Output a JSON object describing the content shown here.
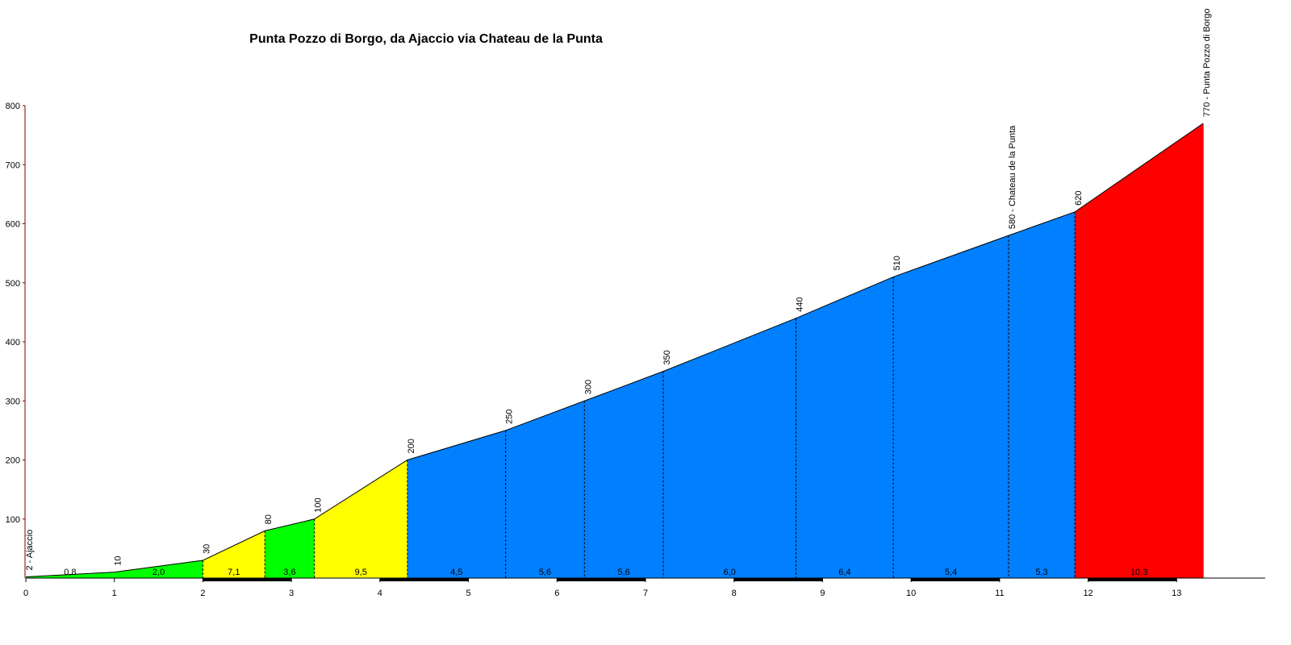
{
  "chart_data": {
    "type": "elevation-profile",
    "title": "Punta Pozzo di Borgo, da Ajaccio via Chateau de la Punta",
    "x": [
      0,
      1.0,
      2.0,
      2.7,
      3.26,
      4.31,
      5.42,
      6.31,
      7.2,
      8.7,
      9.8,
      11.1,
      11.85,
      13.3
    ],
    "values": [
      2,
      10,
      30,
      80,
      100,
      200,
      250,
      300,
      350,
      440,
      510,
      580,
      620,
      770
    ],
    "value_labels": [
      "2 - Ajaccio",
      "10",
      "30",
      "80",
      "100",
      "200",
      "250",
      "300",
      "350",
      "440",
      "510",
      "580 - Chateau de la Punta",
      "620",
      "770 - Punta Pozzo di Borgo"
    ],
    "gradients": [
      {
        "value": 0.8,
        "label": "0,8"
      },
      {
        "value": 2.0,
        "label": "2,0"
      },
      {
        "value": 7.1,
        "label": "7,1"
      },
      {
        "value": 3.6,
        "label": "3,6"
      },
      {
        "value": 9.5,
        "label": "9,5"
      },
      {
        "value": 4.5,
        "label": "4,5"
      },
      {
        "value": 5.6,
        "label": "5,6"
      },
      {
        "value": 5.6,
        "label": "5,6"
      },
      {
        "value": 6.0,
        "label": "6,0"
      },
      {
        "value": 6.4,
        "label": "6,4"
      },
      {
        "value": 5.4,
        "label": "5,4"
      },
      {
        "value": 5.3,
        "label": "5,3"
      },
      {
        "value": 10.3,
        "label": "10,3"
      }
    ],
    "segment_colors": [
      "#00ff00",
      "#00ff00",
      "#ffff00",
      "#00ff00",
      "#ffff00",
      "#0080ff",
      "#0080ff",
      "#0080ff",
      "#0080ff",
      "#0080ff",
      "#0080ff",
      "#0080ff",
      "#ff0000"
    ],
    "xlim": [
      0,
      14
    ],
    "xticks": [
      0,
      1,
      2,
      3,
      4,
      5,
      6,
      7,
      8,
      9,
      10,
      11,
      12,
      13
    ],
    "ylim": [
      0,
      800
    ],
    "yticks": [
      100,
      200,
      300,
      400,
      500,
      600,
      700,
      800
    ]
  }
}
